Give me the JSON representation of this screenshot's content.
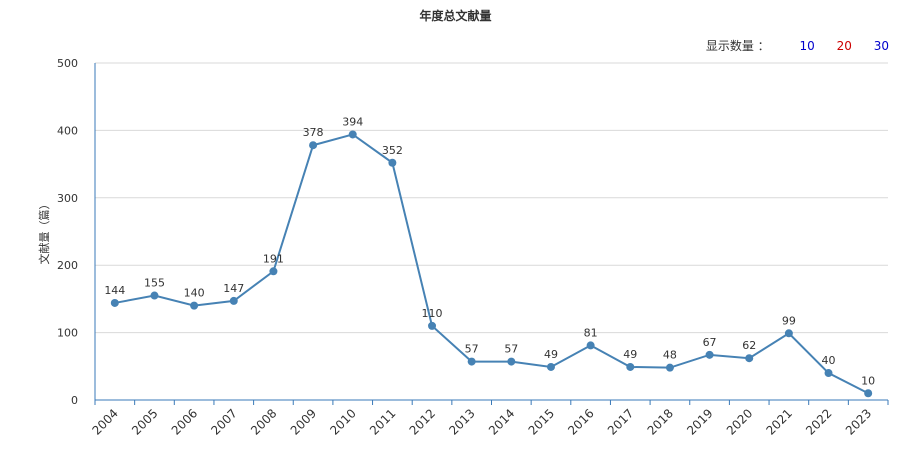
{
  "title": "年度总文献量",
  "count_control": {
    "label": "显示数量 ：",
    "options": [
      {
        "text": "10",
        "color": "#0000cc"
      },
      {
        "text": "20",
        "color": "#cc0000"
      },
      {
        "text": "30",
        "color": "#0000cc"
      }
    ]
  },
  "chart_data": {
    "type": "line",
    "title": "年度总文献量",
    "xlabel": "",
    "ylabel": "文献量（篇）",
    "ylim": [
      0,
      500
    ],
    "yticks": [
      0,
      100,
      200,
      300,
      400,
      500
    ],
    "grid": true,
    "line_color": "#4682b4",
    "categories": [
      "2004",
      "2005",
      "2006",
      "2007",
      "2008",
      "2009",
      "2010",
      "2011",
      "2012",
      "2013",
      "2014",
      "2015",
      "2016",
      "2017",
      "2018",
      "2019",
      "2020",
      "2021",
      "2022",
      "2023"
    ],
    "series": [
      {
        "values": [
          144,
          155,
          140,
          147,
          191,
          378,
          394,
          352,
          110,
          57,
          57,
          49,
          81,
          49,
          48,
          67,
          62,
          99,
          40,
          10
        ]
      }
    ]
  }
}
